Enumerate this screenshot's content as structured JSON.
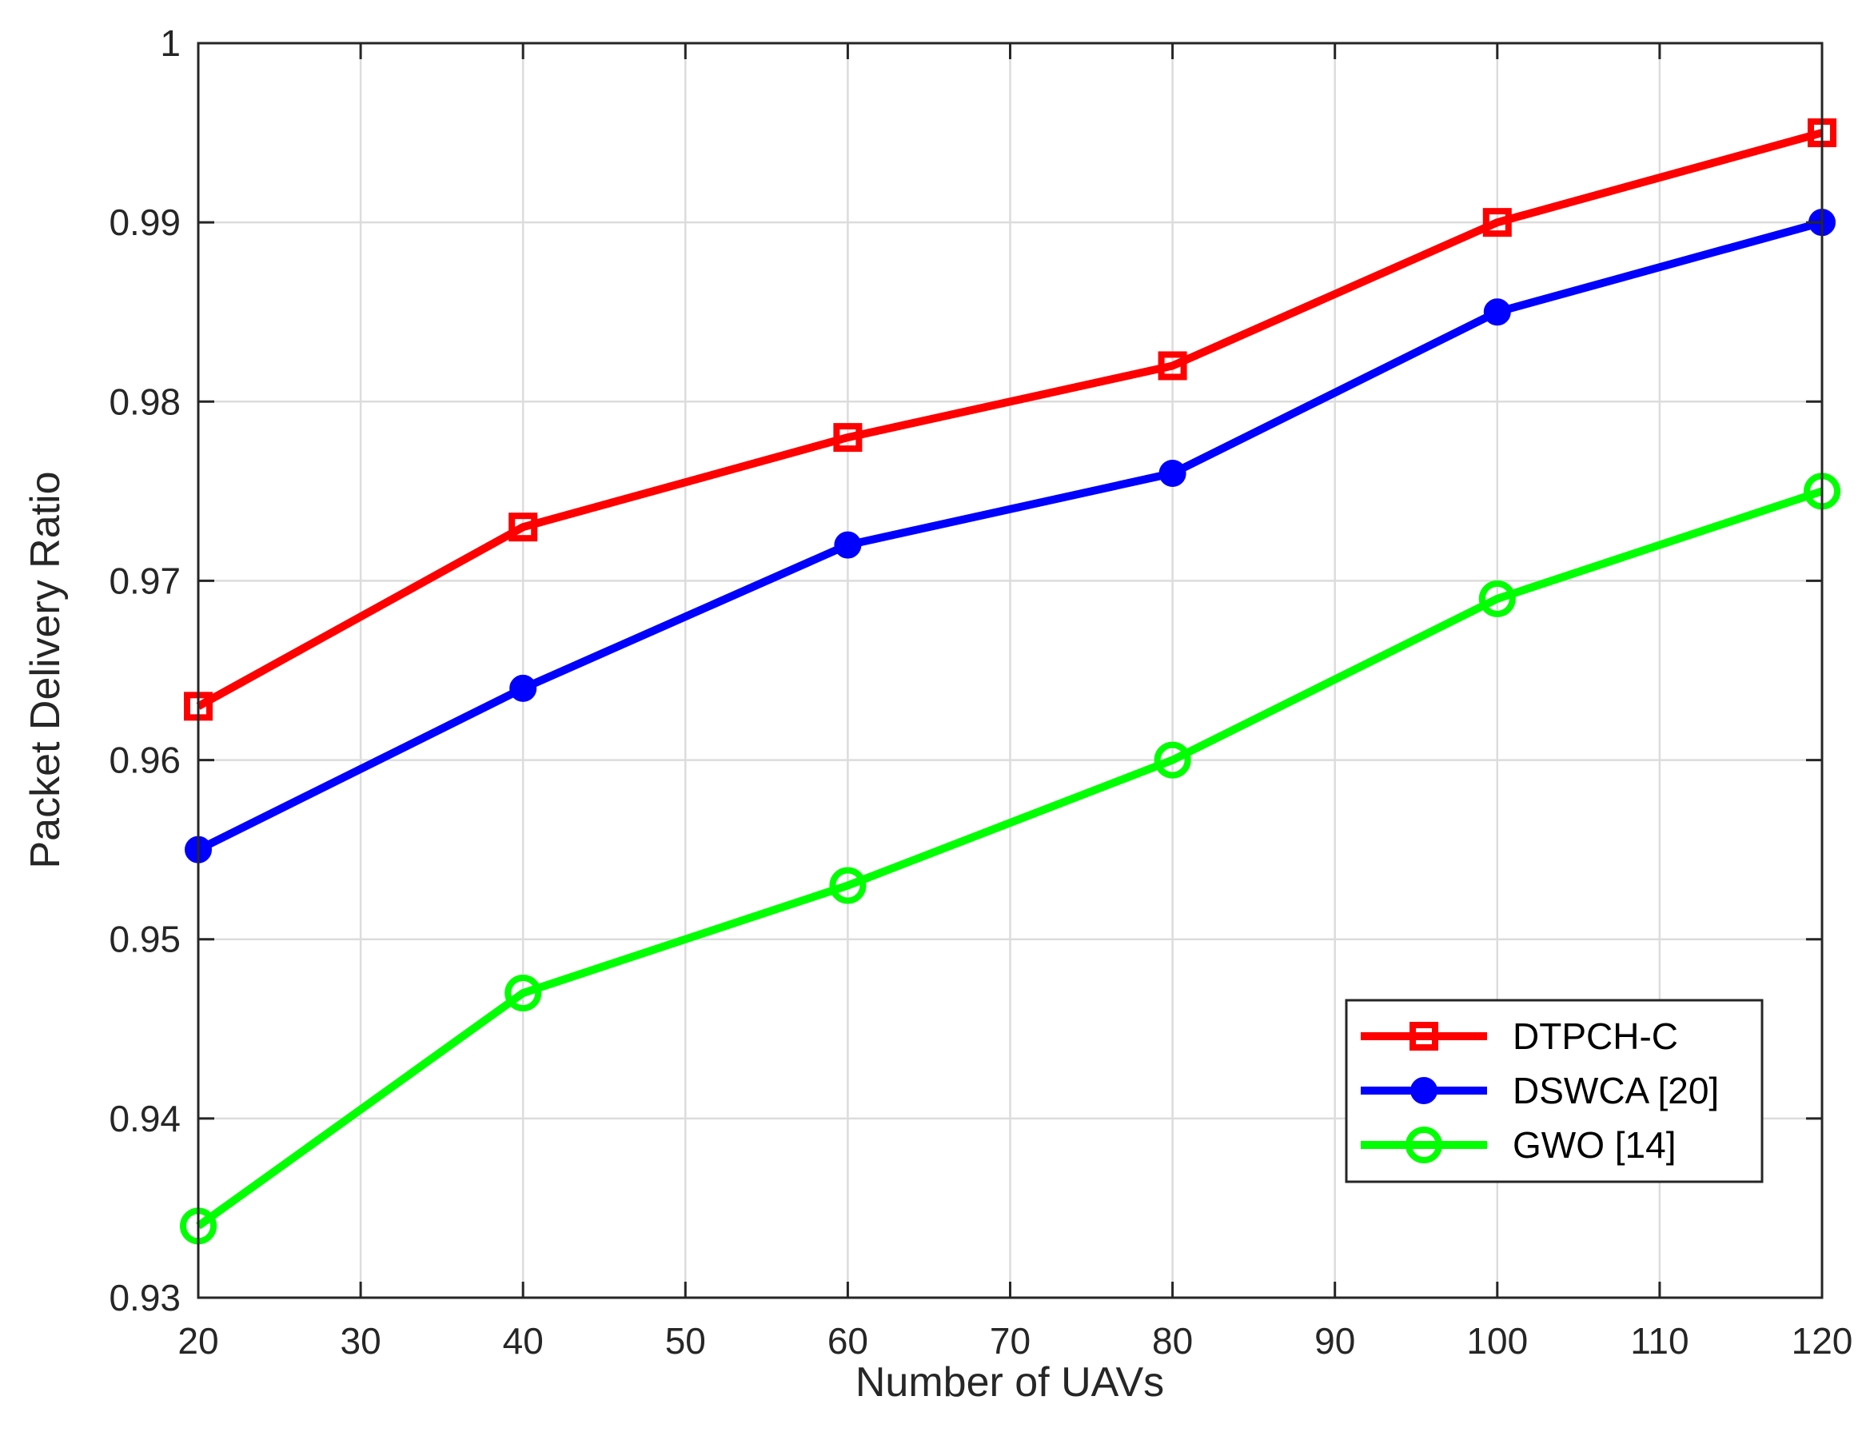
{
  "chart_data": {
    "type": "line",
    "title": "",
    "xlabel": "Number of UAVs",
    "ylabel": "Packet Delivery Ratio",
    "xlim": [
      20,
      120
    ],
    "ylim": [
      0.93,
      1
    ],
    "x_ticks": [
      "20",
      "30",
      "40",
      "50",
      "60",
      "70",
      "80",
      "90",
      "100",
      "110",
      "120"
    ],
    "y_ticks": [
      "0.93",
      "0.94",
      "0.95",
      "0.96",
      "0.97",
      "0.98",
      "0.99",
      "1"
    ],
    "grid": true,
    "legend_position": "bottom-right",
    "x": [
      20,
      40,
      60,
      80,
      100,
      120
    ],
    "series": [
      {
        "name": "DTPCH-C",
        "color": "#ff0000",
        "marker": "square",
        "values": [
          0.963,
          0.973,
          0.978,
          0.982,
          0.99,
          0.995
        ]
      },
      {
        "name": "DSWCA [20]",
        "color": "#0000ff",
        "marker": "filled-circle",
        "values": [
          0.955,
          0.964,
          0.972,
          0.976,
          0.985,
          0.99
        ]
      },
      {
        "name": "GWO [14]",
        "color": "#00ff00",
        "marker": "open-circle",
        "values": [
          0.934,
          0.947,
          0.953,
          0.96,
          0.969,
          0.975
        ]
      }
    ]
  }
}
